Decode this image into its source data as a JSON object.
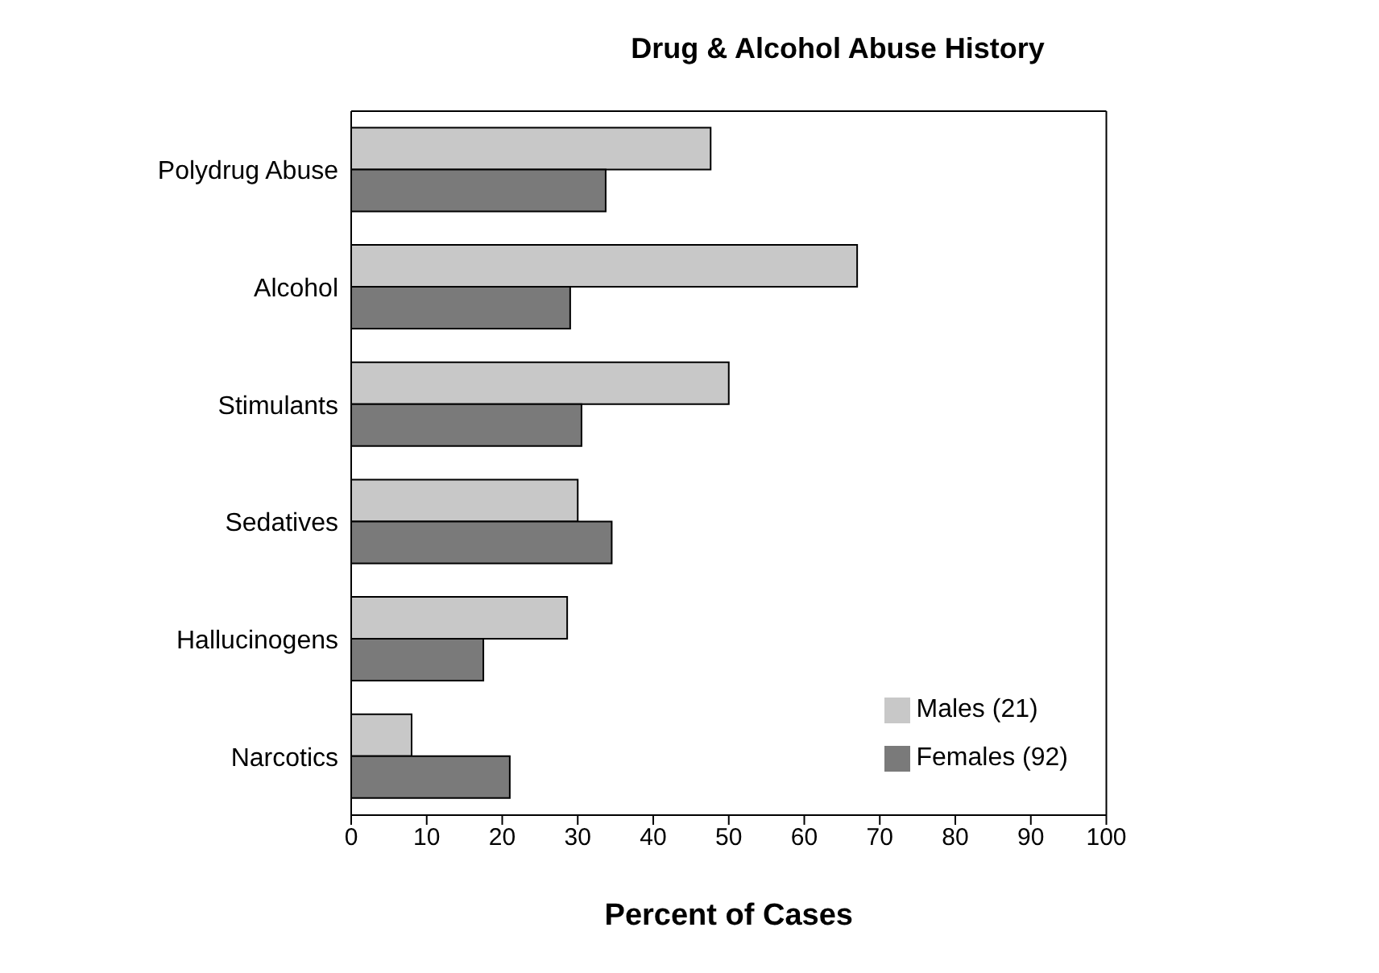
{
  "chart_data": {
    "type": "bar",
    "orientation": "horizontal",
    "title": "Drug & Alcohol Abuse History",
    "xlabel": "Percent of Cases",
    "categories": [
      "Polydrug Abuse",
      "Alcohol",
      "Stimulants",
      "Sedatives",
      "Hallucinogens",
      "Narcotics"
    ],
    "series": [
      {
        "name": "Males (21)",
        "color": "#c8c8c8",
        "values": [
          47.6,
          67,
          50,
          30,
          28.6,
          8
        ]
      },
      {
        "name": "Females (92)",
        "color": "#7a7a7a",
        "values": [
          33.7,
          29,
          30.5,
          34.5,
          17.5,
          21
        ]
      }
    ],
    "xlim": [
      0,
      100
    ],
    "xticks": [
      0,
      10,
      20,
      30,
      40,
      50,
      60,
      70,
      80,
      90,
      100
    ],
    "grid": false,
    "legend": "bottom right"
  }
}
